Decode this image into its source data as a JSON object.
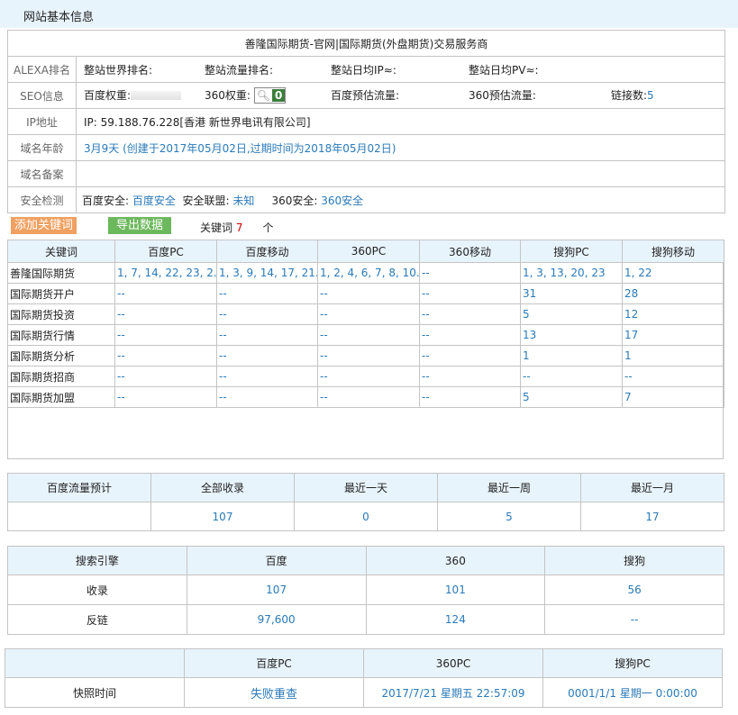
{
  "header": {
    "title": "网站基本信息"
  },
  "info": {
    "site_title": "善隆国际期货-官网|国际期货(外盘期货)交易服务商",
    "labels": [
      "ALEXA排名",
      "SEO信息",
      "IP地址",
      "域名年龄",
      "域名备案",
      "安全检测"
    ],
    "alexa": [
      "整站世界排名:",
      "整站流量排名:",
      "整站日均IP≈:",
      "整站日均PV≈:"
    ],
    "seo": {
      "baidu_weight": "百度权重:",
      "w360": "360权重:",
      "w360_value": "0",
      "baidu_traffic": "百度预估流量:",
      "traffic360": "360预估流量:",
      "links_label": "链接数:",
      "links_value": "5"
    },
    "ip": "IP: 59.188.76.228[香港 新世界电讯有限公司]",
    "age": "3月9天 (创建于2017年05月02日,过期时间为2018年05月02日)",
    "security": {
      "baidu_label": "百度安全:",
      "baidu_value": "百度安全",
      "union_label": "安全联盟:",
      "union_value": "未知",
      "s360_label": "360安全:",
      "s360_value": "360安全"
    }
  },
  "toolbar": {
    "add_label": "添加关键词",
    "export_label": "导出数据",
    "kw_label": "关键词",
    "kw_count": "7",
    "kw_unit": "个",
    "add_color": "#f0a060",
    "export_color": "#6cb85c"
  },
  "keywords": {
    "headers": [
      "关键词",
      "百度PC",
      "百度移动",
      "360PC",
      "360移动",
      "搜狗PC",
      "搜狗移动"
    ],
    "rows": [
      [
        "善隆国际期货",
        "1, 7, 14, 22, 23, 2...",
        "1, 3, 9, 14, 17, 21...",
        "1, 2, 4, 6, 7, 8, 10...",
        "--",
        "1, 3, 13, 20, 23",
        "1, 22"
      ],
      [
        "国际期货开户",
        "--",
        "--",
        "--",
        "--",
        "31",
        "28"
      ],
      [
        "国际期货投资",
        "--",
        "--",
        "--",
        "--",
        "5",
        "12"
      ],
      [
        "国际期货行情",
        "--",
        "--",
        "--",
        "--",
        "13",
        "17"
      ],
      [
        "国际期货分析",
        "--",
        "--",
        "--",
        "--",
        "1",
        "1"
      ],
      [
        "国际期货招商",
        "--",
        "--",
        "--",
        "--",
        "--",
        "--"
      ],
      [
        "国际期货加盟",
        "--",
        "--",
        "--",
        "--",
        "5",
        "7"
      ]
    ]
  },
  "traffic": {
    "headers": [
      "百度流量预计",
      "全部收录",
      "最近一天",
      "最近一周",
      "最近一月"
    ],
    "values": [
      "",
      "107",
      "0",
      "5",
      "17"
    ]
  },
  "engines": {
    "headers": [
      "搜索引擎",
      "百度",
      "360",
      "搜狗"
    ],
    "rows": [
      [
        "收录",
        "107",
        "101",
        "56"
      ],
      [
        "反链",
        "97,600",
        "124",
        "--"
      ]
    ]
  },
  "snapshot": {
    "headers": [
      "",
      "百度PC",
      "360PC",
      "搜狗PC"
    ],
    "row": [
      "快照时间",
      "失败重查",
      "2017/7/21 星期五 22:57:09",
      "0001/1/1 星期一 0:00:00"
    ]
  }
}
